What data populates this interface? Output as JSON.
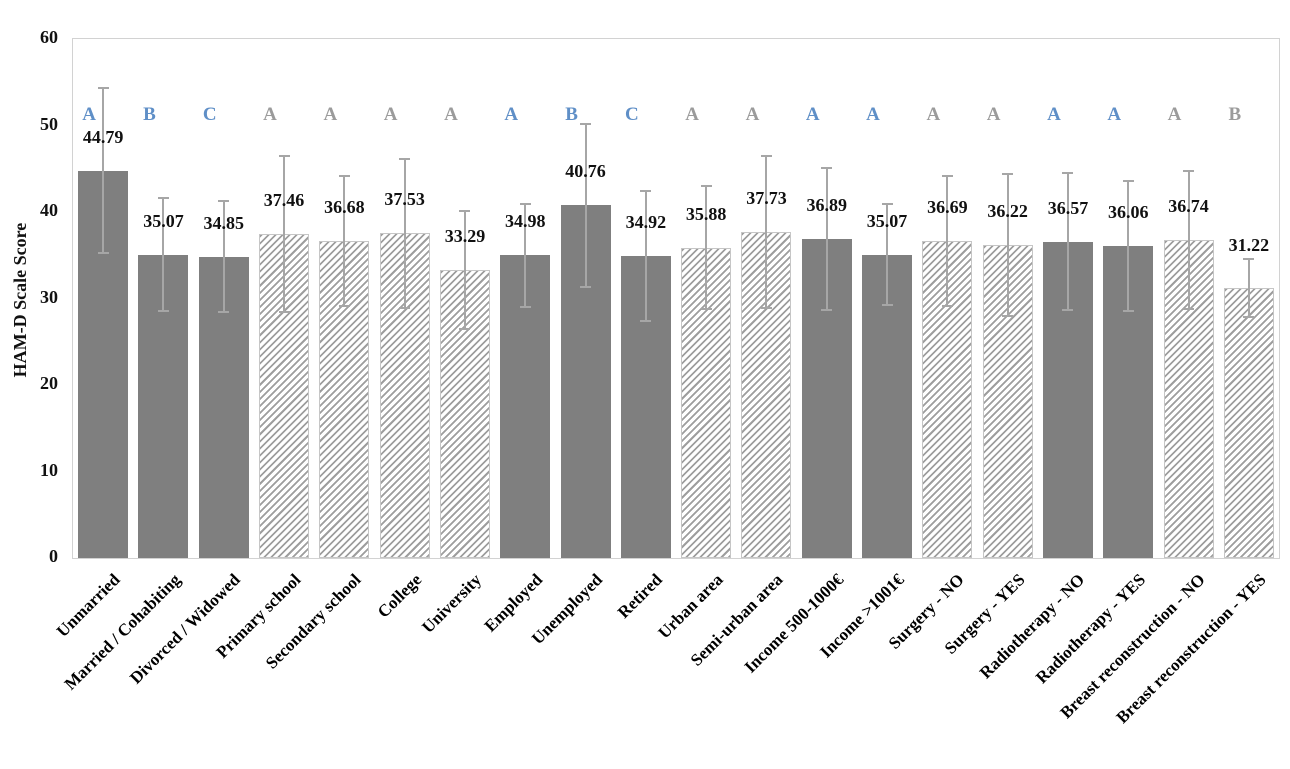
{
  "chart_data": {
    "type": "bar",
    "title": "",
    "xlabel": "",
    "ylabel": "HAM-D Scale Score",
    "ylim": [
      0,
      60
    ],
    "yticks": [
      0,
      10,
      20,
      30,
      40,
      50,
      60
    ],
    "grid": false,
    "legend": "none",
    "categories": [
      "Unmarried",
      "Married / Cohabiting",
      "Divorced / Widowed",
      "Primary school",
      "Secondary school",
      "College",
      "University",
      "Employed",
      "Unemployed",
      "Retired",
      "Urban area",
      "Semi-urban area",
      "Income 500-1000€",
      "Income >1001€",
      "Surgery - NO",
      "Surgery - YES",
      "Radiotherapy - NO",
      "Radiotherapy - YES",
      "Breast reconstruction - NO",
      "Breast reconstruction - YES"
    ],
    "values": [
      44.79,
      35.07,
      34.85,
      37.46,
      36.68,
      37.53,
      33.29,
      34.98,
      40.76,
      34.92,
      35.88,
      37.73,
      36.89,
      35.07,
      36.69,
      36.22,
      36.57,
      36.06,
      36.74,
      31.22
    ],
    "errors": [
      9.5,
      6.5,
      6.4,
      9.0,
      7.5,
      8.6,
      6.8,
      6.0,
      9.4,
      7.5,
      7.1,
      8.8,
      8.2,
      5.8,
      7.5,
      8.2,
      7.9,
      7.5,
      8.0,
      3.4
    ],
    "letters": [
      "A",
      "B",
      "C",
      "A",
      "A",
      "A",
      "A",
      "A",
      "B",
      "C",
      "A",
      "A",
      "A",
      "A",
      "A",
      "A",
      "A",
      "A",
      "A",
      "B"
    ],
    "letter_colors": [
      "blue",
      "blue",
      "blue",
      "gray",
      "gray",
      "gray",
      "gray",
      "blue",
      "blue",
      "blue",
      "gray",
      "gray",
      "blue",
      "blue",
      "gray",
      "gray",
      "blue",
      "blue",
      "gray",
      "gray"
    ],
    "bar_patterns": [
      "solid",
      "solid",
      "solid",
      "hatch",
      "hatch",
      "hatch",
      "hatch",
      "solid",
      "solid",
      "solid",
      "hatch",
      "hatch",
      "solid",
      "solid",
      "hatch",
      "hatch",
      "solid",
      "solid",
      "hatch",
      "hatch"
    ],
    "colors": {
      "bar_solid": "#7f7f7f",
      "hatch_stripe": "#9e9e9e",
      "hatch_background": "#ffffff",
      "error_bar": "#a6a6a6",
      "letter_blue": "#5f8fc7",
      "letter_gray": "#9b9b9b",
      "text": "#111111",
      "plot_border": "#d2d2d2"
    }
  }
}
